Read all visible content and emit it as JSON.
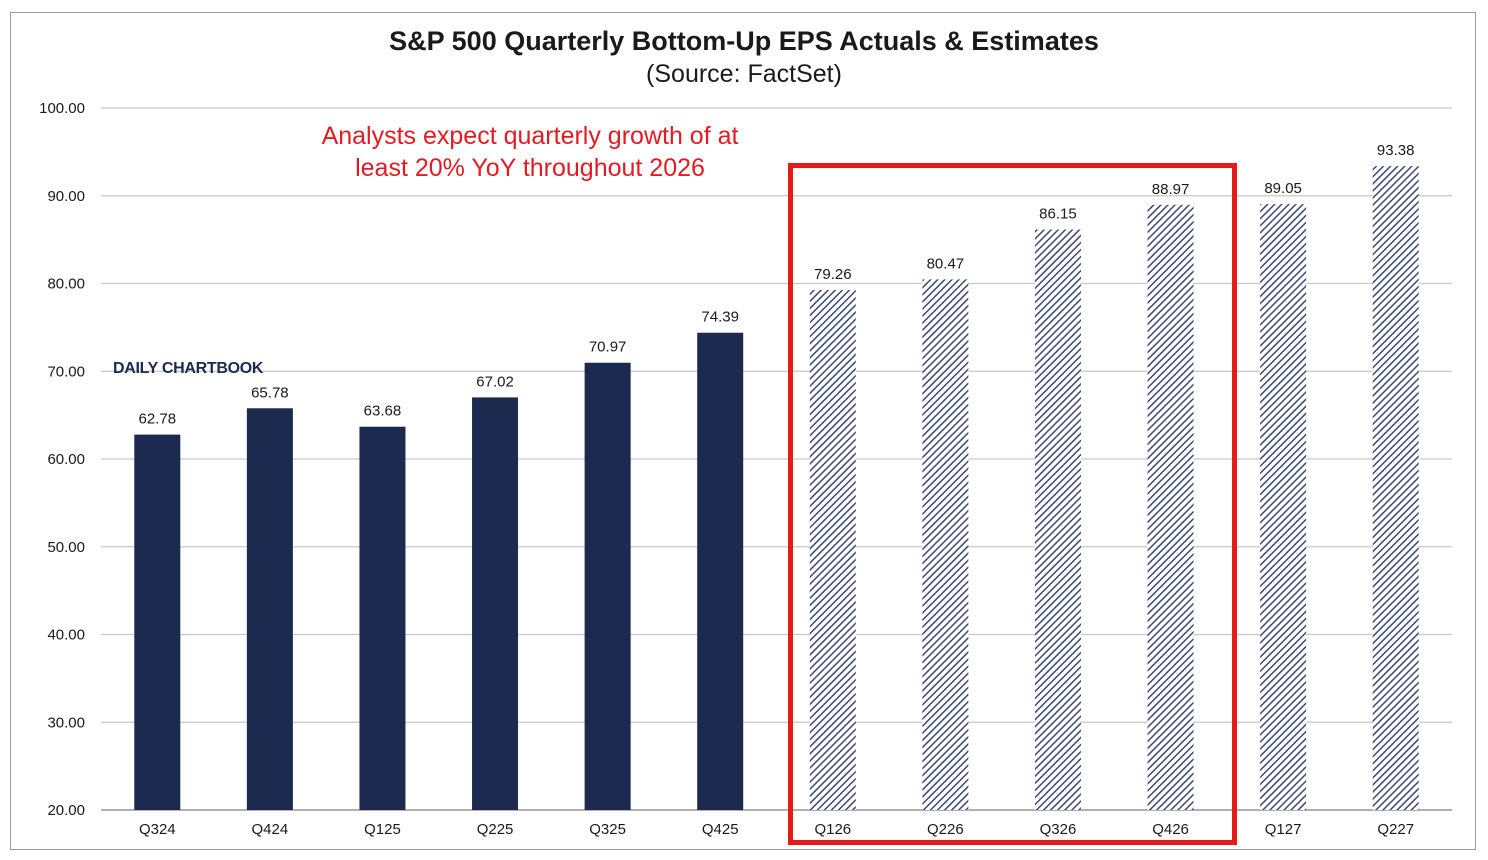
{
  "chart_data": {
    "type": "bar",
    "title": "S&P 500 Quarterly  Bottom-Up EPS Actuals & Estimates",
    "subtitle": "(Source: FactSet)",
    "xlabel": "",
    "ylabel": "",
    "ylim": [
      20,
      100
    ],
    "yticks": [
      "20.00",
      "30.00",
      "40.00",
      "50.00",
      "60.00",
      "70.00",
      "80.00",
      "90.00",
      "100.00"
    ],
    "grid": true,
    "categories": [
      "Q324",
      "Q424",
      "Q125",
      "Q225",
      "Q325",
      "Q425",
      "Q126",
      "Q226",
      "Q326",
      "Q426",
      "Q127",
      "Q227"
    ],
    "values": [
      62.78,
      65.78,
      63.68,
      67.02,
      70.97,
      74.39,
      79.26,
      80.47,
      86.15,
      88.97,
      89.05,
      93.38
    ],
    "value_labels": [
      "62.78",
      "65.78",
      "63.68",
      "67.02",
      "70.97",
      "74.39",
      "79.26",
      "80.47",
      "86.15",
      "88.97",
      "89.05",
      "93.38"
    ],
    "bar_style": [
      "actual",
      "actual",
      "actual",
      "actual",
      "actual",
      "actual",
      "estimate",
      "estimate",
      "estimate",
      "estimate",
      "estimate",
      "estimate"
    ],
    "annotation": "Analysts expect quarterly growth of at least 20% YoY throughout 2026",
    "highlighted_categories": [
      "Q126",
      "Q226",
      "Q326",
      "Q426"
    ],
    "watermark": "DAILY CHARTBOOK",
    "colors": {
      "actual_bar": "#1c2a4f",
      "estimate_hatch": "#3a4a70",
      "highlight": "#e21b1b",
      "annotation_text": "#e31b23",
      "grid": "#c8c8c8"
    }
  }
}
